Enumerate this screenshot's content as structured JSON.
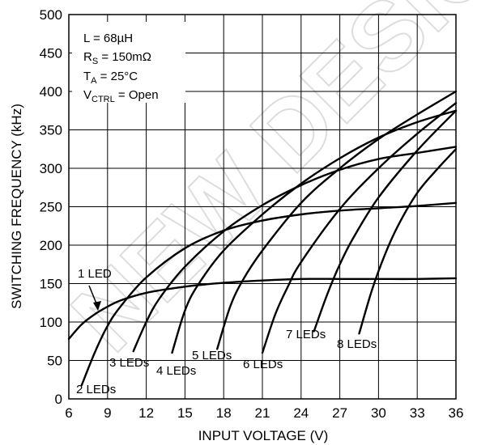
{
  "chart_data": {
    "type": "line",
    "xlabel": "INPUT VOLTAGE (V)",
    "ylabel": "SWITCHING FREQUENCY (kHz)",
    "xlim": [
      6,
      36
    ],
    "ylim": [
      0,
      500
    ],
    "x_ticks": [
      6,
      9,
      12,
      15,
      18,
      21,
      24,
      27,
      30,
      33,
      36
    ],
    "y_ticks": [
      0,
      50,
      100,
      150,
      200,
      250,
      300,
      350,
      400,
      450,
      500
    ],
    "grid": true,
    "parameters": [
      "L = 68µH",
      "R_S = 150mΩ",
      "T_A = 25°C",
      "V_CTRL = Open"
    ],
    "series": [
      {
        "name": "1 LED",
        "x": [
          6,
          7,
          8,
          9,
          10,
          12,
          15,
          18,
          21,
          24,
          27,
          30,
          33,
          36
        ],
        "y": [
          78,
          97,
          110,
          120,
          128,
          138,
          146,
          151,
          154,
          156,
          156,
          156,
          156,
          157
        ]
      },
      {
        "name": "2 LEDs",
        "x": [
          7,
          8,
          9,
          10,
          12,
          15,
          18,
          21,
          24,
          27,
          30,
          33,
          36
        ],
        "y": [
          18,
          60,
          95,
          120,
          158,
          196,
          219,
          232,
          240,
          245,
          248,
          251,
          255
        ]
      },
      {
        "name": "3 LEDs",
        "x": [
          11,
          12,
          13,
          15,
          18,
          21,
          24,
          27,
          30,
          33,
          36
        ],
        "y": [
          62,
          100,
          130,
          172,
          218,
          252,
          278,
          298,
          312,
          320,
          328
        ]
      },
      {
        "name": "4 LEDs",
        "x": [
          14,
          15,
          16,
          18,
          21,
          24,
          27,
          30,
          33,
          36
        ],
        "y": [
          60,
          115,
          148,
          193,
          240,
          280,
          313,
          340,
          360,
          375
        ]
      },
      {
        "name": "5 LEDs",
        "x": [
          17.5,
          18.5,
          19.5,
          21,
          24,
          27,
          30,
          33,
          36
        ],
        "y": [
          65,
          120,
          155,
          193,
          255,
          300,
          338,
          370,
          400
        ]
      },
      {
        "name": "6 LEDs",
        "x": [
          21,
          22,
          23,
          24,
          27,
          30,
          33,
          36
        ],
        "y": [
          60,
          110,
          147,
          178,
          247,
          300,
          345,
          385
        ]
      },
      {
        "name": "7 LEDs",
        "x": [
          25,
          26,
          27,
          28,
          30,
          33,
          36
        ],
        "y": [
          88,
          135,
          175,
          208,
          262,
          323,
          375
        ]
      },
      {
        "name": "8 LEDs",
        "x": [
          28.5,
          29.5,
          30.5,
          31.5,
          33,
          34.5,
          36
        ],
        "y": [
          85,
          142,
          188,
          225,
          268,
          298,
          325
        ]
      }
    ],
    "label_text": [
      "1 LED",
      "2 LEDs",
      "3 LEDs",
      "4 LEDs",
      "5 LEDs",
      "6 LEDs",
      "7 LEDs",
      "8 LEDs"
    ],
    "watermark": "NEW DESIGN"
  }
}
